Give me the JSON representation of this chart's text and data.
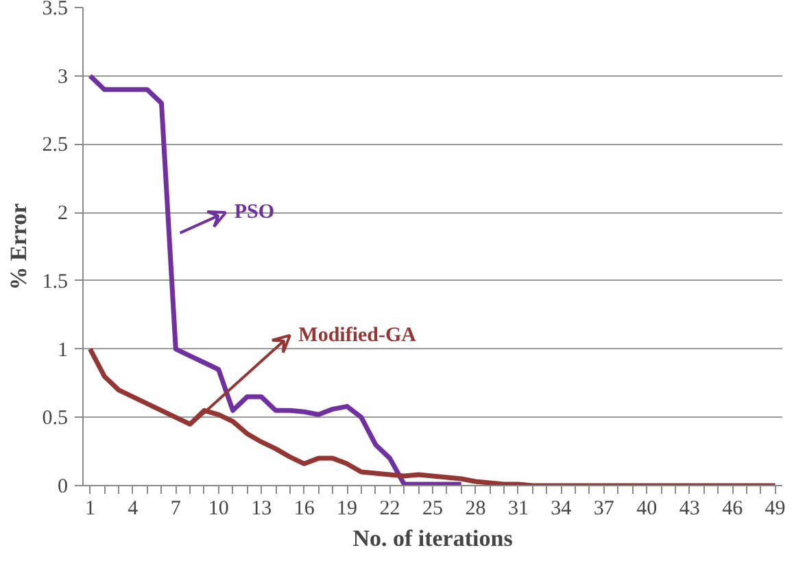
{
  "chart_data": {
    "type": "line",
    "xlabel": "No. of iterations",
    "ylabel": "% Error",
    "categories": [
      "1",
      null,
      null,
      "4",
      null,
      null,
      "7",
      null,
      null,
      "10",
      null,
      null,
      "13",
      null,
      null,
      "16",
      null,
      null,
      "19",
      null,
      null,
      "22",
      null,
      null,
      "25",
      null,
      null,
      "28",
      null,
      null,
      "31",
      null,
      null,
      "34",
      null,
      null,
      "37",
      null,
      null,
      "40",
      null,
      null,
      "43",
      null,
      null,
      "46",
      null,
      null,
      "49"
    ],
    "series": [
      {
        "color": "#7030a0",
        "values": [
          3.0,
          2.9,
          2.9,
          2.9,
          2.9,
          2.8,
          1.0,
          0.95,
          0.9,
          0.85,
          0.55,
          0.65,
          0.65,
          0.55,
          0.55,
          0.54,
          0.52,
          0.56,
          0.58,
          0.5,
          0.3,
          0.2,
          0.01,
          0.01,
          0.01,
          0.01,
          0.01,
          null,
          null,
          null,
          null,
          null,
          null,
          null,
          null,
          null,
          null,
          null,
          null,
          null,
          null,
          null,
          null,
          null,
          null,
          null,
          null,
          null,
          null
        ]
      },
      {
        "color": "#943634",
        "values": [
          1.0,
          0.8,
          0.7,
          0.65,
          0.6,
          0.55,
          0.5,
          0.45,
          0.55,
          0.52,
          0.47,
          0.38,
          0.32,
          0.27,
          0.21,
          0.16,
          0.2,
          0.2,
          0.16,
          0.1,
          0.09,
          0.08,
          0.07,
          0.08,
          0.07,
          0.06,
          0.05,
          0.03,
          0.02,
          0.01,
          0.01,
          0,
          0,
          0,
          0,
          0,
          0,
          0,
          0,
          0,
          0,
          0,
          0,
          0,
          0,
          0,
          0,
          0,
          0
        ]
      }
    ],
    "annotations": [
      "PSO",
      "Modified-GA"
    ],
    "ylim": [
      0,
      3.5
    ],
    "yticks": [
      0,
      0.5,
      1,
      1.5,
      2,
      2.5,
      3,
      3.5
    ],
    "grid": "y",
    "marker": "none",
    "line_style": "solid"
  }
}
